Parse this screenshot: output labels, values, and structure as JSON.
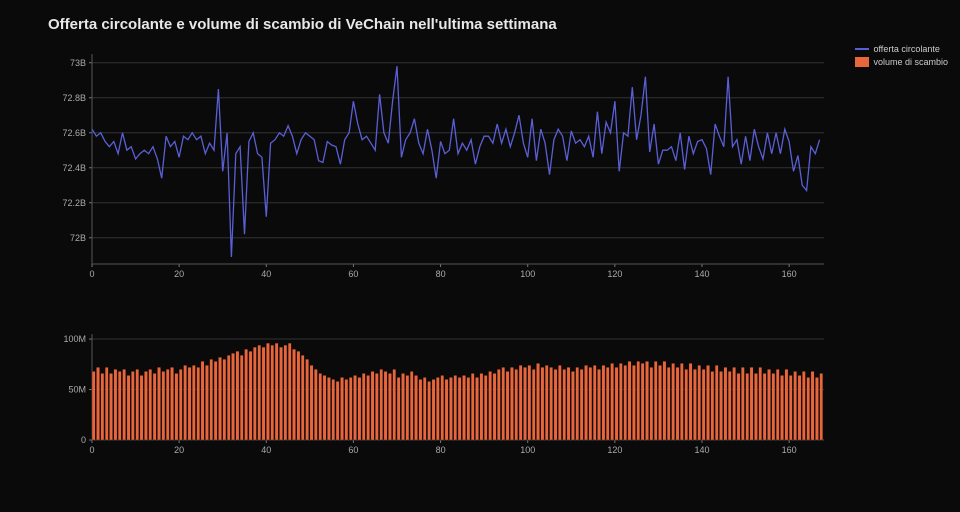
{
  "title": "Offerta circolante e volume di scambio di VeChain nell'ultima settimana",
  "legend": {
    "series1": "offerta circolante",
    "series2": "volume di scambio"
  },
  "colors": {
    "background": "#0a0a0a",
    "line_series": "#5a5fd6",
    "bar_series": "#e8663c",
    "grid": "#333333",
    "axis_text": "#aaaaaa",
    "title_text": "#e8e8e8"
  },
  "top_chart": {
    "type": "line",
    "x_range": [
      0,
      168
    ],
    "x_ticks": [
      0,
      20,
      40,
      60,
      80,
      100,
      120,
      140,
      160
    ],
    "y_range": [
      71.85,
      73.05
    ],
    "y_ticks": [
      72.0,
      72.2,
      72.4,
      72.6,
      72.8,
      73.0
    ],
    "y_tick_labels": [
      "72B",
      "72.2B",
      "72.4B",
      "72.6B",
      "72.8B",
      "73B"
    ],
    "line_width": 1.3,
    "values": [
      72.62,
      72.58,
      72.6,
      72.55,
      72.52,
      72.55,
      72.48,
      72.6,
      72.5,
      72.52,
      72.45,
      72.48,
      72.5,
      72.48,
      72.52,
      72.45,
      72.34,
      72.58,
      72.52,
      72.55,
      72.46,
      72.58,
      72.56,
      72.6,
      72.56,
      72.58,
      72.48,
      72.54,
      72.5,
      72.85,
      72.38,
      72.6,
      71.89,
      72.48,
      72.52,
      72.02,
      72.55,
      72.6,
      72.48,
      72.46,
      72.12,
      72.54,
      72.56,
      72.6,
      72.58,
      72.64,
      72.58,
      72.48,
      72.56,
      72.6,
      72.58,
      72.56,
      72.44,
      72.43,
      72.55,
      72.53,
      72.52,
      72.42,
      72.56,
      72.6,
      72.78,
      72.65,
      72.56,
      72.58,
      72.54,
      72.5,
      72.82,
      72.6,
      72.54,
      72.78,
      72.98,
      72.46,
      72.56,
      72.6,
      72.68,
      72.54,
      72.48,
      72.62,
      72.5,
      72.34,
      72.55,
      72.48,
      72.5,
      72.68,
      72.48,
      72.54,
      72.5,
      72.56,
      72.42,
      72.52,
      72.58,
      72.58,
      72.54,
      72.65,
      72.54,
      72.62,
      72.52,
      72.6,
      72.7,
      72.54,
      72.46,
      72.68,
      72.44,
      72.62,
      72.54,
      72.36,
      72.56,
      72.62,
      72.58,
      72.44,
      72.61,
      72.54,
      72.56,
      72.52,
      72.58,
      72.46,
      72.72,
      72.48,
      72.66,
      72.6,
      72.78,
      72.38,
      72.6,
      72.58,
      72.86,
      72.56,
      72.7,
      72.92,
      72.49,
      72.65,
      72.42,
      72.5,
      72.5,
      72.52,
      72.44,
      72.6,
      72.39,
      72.58,
      72.48,
      72.55,
      72.56,
      72.51,
      72.36,
      72.65,
      72.58,
      72.52,
      72.92,
      72.52,
      72.56,
      72.42,
      72.58,
      72.44,
      72.62,
      72.52,
      72.45,
      72.6,
      72.48,
      72.6,
      72.48,
      72.62,
      72.55,
      72.38,
      72.47,
      72.3,
      72.27,
      72.52,
      72.48,
      72.56
    ]
  },
  "bottom_chart": {
    "type": "bar",
    "x_range": [
      0,
      168
    ],
    "x_ticks": [
      0,
      20,
      40,
      60,
      80,
      100,
      120,
      140,
      160
    ],
    "y_range": [
      0,
      105
    ],
    "y_ticks": [
      0,
      50,
      100
    ],
    "y_tick_labels": [
      "0",
      "50M",
      "100M"
    ],
    "bar_width": 0.75,
    "values": [
      68,
      72,
      66,
      72,
      66,
      70,
      68,
      70,
      64,
      68,
      70,
      64,
      68,
      70,
      66,
      72,
      68,
      70,
      72,
      66,
      70,
      74,
      72,
      74,
      72,
      78,
      74,
      80,
      78,
      82,
      80,
      84,
      86,
      88,
      84,
      90,
      88,
      92,
      94,
      92,
      96,
      94,
      96,
      92,
      94,
      96,
      90,
      88,
      84,
      80,
      74,
      70,
      66,
      64,
      62,
      60,
      58,
      62,
      60,
      62,
      64,
      62,
      66,
      64,
      68,
      66,
      70,
      68,
      66,
      70,
      62,
      66,
      64,
      68,
      64,
      60,
      62,
      58,
      60,
      62,
      64,
      60,
      62,
      64,
      62,
      64,
      62,
      66,
      62,
      66,
      64,
      68,
      66,
      70,
      72,
      68,
      72,
      70,
      74,
      72,
      74,
      70,
      76,
      72,
      74,
      72,
      70,
      74,
      70,
      72,
      68,
      72,
      70,
      74,
      72,
      74,
      70,
      74,
      72,
      76,
      72,
      76,
      74,
      78,
      74,
      78,
      76,
      78,
      72,
      78,
      74,
      78,
      72,
      76,
      72,
      76,
      70,
      76,
      70,
      74,
      70,
      74,
      68,
      74,
      68,
      72,
      68,
      72,
      66,
      72,
      66,
      72,
      66,
      72,
      66,
      70,
      66,
      70,
      64,
      70,
      64,
      68,
      64,
      68,
      62,
      68,
      62,
      66
    ]
  },
  "fonts": {
    "title_size": 15,
    "axis_size": 9,
    "legend_size": 9
  }
}
